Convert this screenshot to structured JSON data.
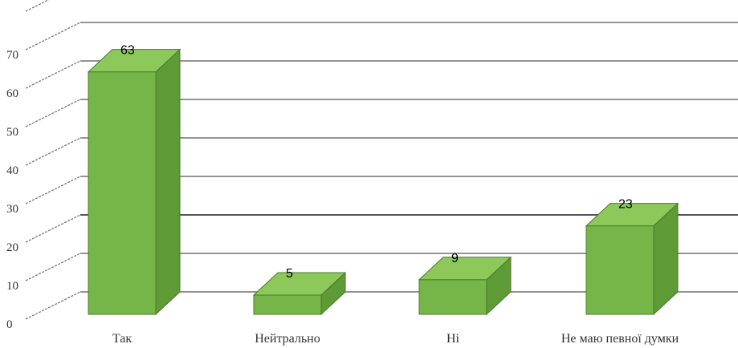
{
  "chart_data": {
    "type": "bar",
    "style": "3d-column",
    "categories": [
      "Так",
      "Нейтрально",
      "Ні",
      "Не маю певної думки"
    ],
    "values": [
      63,
      5,
      9,
      23
    ],
    "data_labels": [
      "63",
      "5",
      "9",
      "23"
    ],
    "yticks": [
      "0",
      "10",
      "20",
      "30",
      "40",
      "50",
      "60",
      "70"
    ],
    "ylim": [
      0,
      80
    ],
    "grid": true,
    "legend": "none",
    "title": "",
    "xlabel": "",
    "ylabel": "",
    "colors": {
      "bar_front": "#76b648",
      "bar_top": "#8cc85a",
      "bar_side": "#5e9a35",
      "bar_edge": "#4a7a2a",
      "grid": "#555555"
    }
  }
}
